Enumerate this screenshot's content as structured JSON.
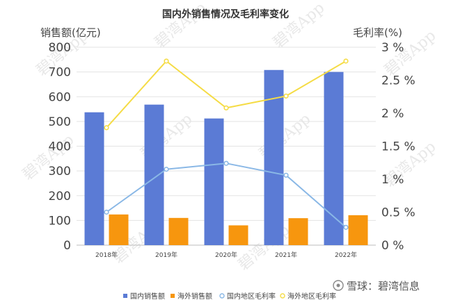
{
  "chart_data": {
    "type": "bar",
    "title": "国内外销售情况及毛利率变化",
    "ylabel": "销售额(亿元)",
    "y2label": "毛利率(%)",
    "ylim": [
      0,
      800
    ],
    "y2lim": [
      0,
      3
    ],
    "yticks": [
      "0",
      "100",
      "200",
      "300",
      "400",
      "500",
      "600",
      "700",
      "800"
    ],
    "y2ticks": [
      "0 %",
      "0.5 %",
      "1 %",
      "1.5 %",
      "2 %",
      "2.5 %",
      "3 %"
    ],
    "grid": true,
    "legend_position": "bottom",
    "categories": [
      "2018年",
      "2019年",
      "2020年",
      "2021年",
      "2022年"
    ],
    "series": [
      {
        "name": "国内销售额",
        "kind": "bar",
        "axis": "left",
        "color": "#5b7bd5",
        "values": [
          537,
          568,
          512,
          708,
          700
        ]
      },
      {
        "name": "海外销售额",
        "kind": "bar",
        "axis": "left",
        "color": "#f7960e",
        "values": [
          124,
          110,
          80,
          109,
          121
        ]
      },
      {
        "name": "国内地区毛利率",
        "kind": "line",
        "axis": "right",
        "color": "#8ab8e6",
        "values": [
          0.5,
          1.15,
          1.24,
          1.06,
          0.27
        ]
      },
      {
        "name": "海外地区毛利率",
        "kind": "line",
        "axis": "right",
        "color": "#f5dc46",
        "values": [
          1.78,
          2.79,
          2.08,
          2.26,
          2.79
        ]
      }
    ]
  },
  "watermark": {
    "text": "碧湾App",
    "brand": "雪球：碧湾信息"
  }
}
